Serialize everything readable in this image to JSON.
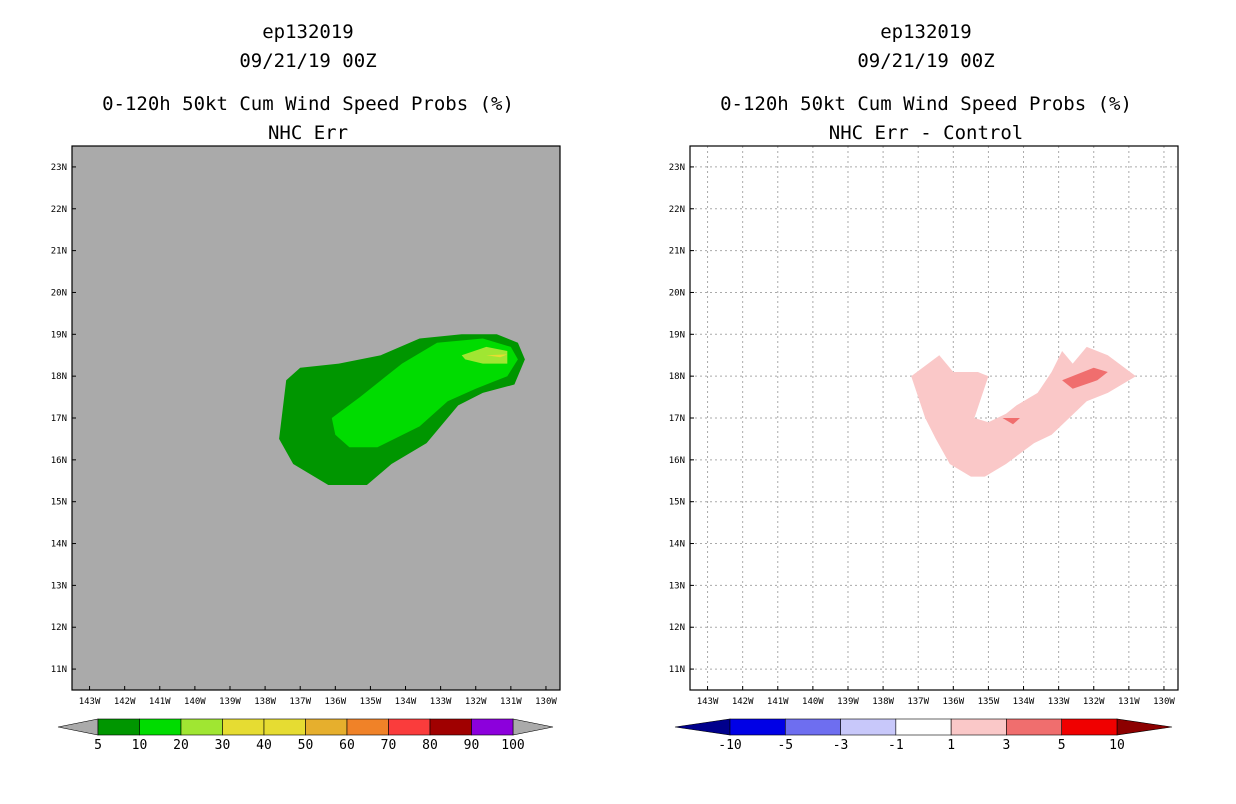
{
  "chart_data": [
    {
      "type": "contour",
      "title": "ep132019",
      "subtitle_date": "09/21/19 00Z",
      "product": "0-120h 50kt Cum Wind Speed Probs (%)",
      "field": "NHC Err",
      "xlabels": [
        "143W",
        "142W",
        "141W",
        "140W",
        "139W",
        "138W",
        "137W",
        "136W",
        "135W",
        "134W",
        "133W",
        "132W",
        "131W",
        "130W"
      ],
      "ylabels": [
        "23N",
        "22N",
        "21N",
        "20N",
        "19N",
        "18N",
        "17N",
        "16N",
        "15N",
        "14N",
        "13N",
        "12N",
        "11N"
      ],
      "xlim": [
        -143.5,
        -129.6
      ],
      "ylim": [
        10.5,
        23.5
      ],
      "grid": false,
      "background": "#aaaaaa",
      "colorbar": {
        "labels": [
          "5",
          "10",
          "20",
          "30",
          "40",
          "50",
          "60",
          "70",
          "80",
          "90",
          "100"
        ],
        "colors": [
          "#009600",
          "#00dc00",
          "#a0e632",
          "#e6dc32",
          "#e6dc32",
          "#e6af2d",
          "#f08228",
          "#fa3c3c",
          "#a00000",
          "#8c00dc"
        ],
        "end_colors": [
          "#aaaaaa",
          "#aaaaaa"
        ]
      },
      "contours": [
        {
          "level": 5,
          "color": "#009600",
          "points": [
            [
              -137.4,
              17.9
            ],
            [
              -137.0,
              18.2
            ],
            [
              -135.9,
              18.3
            ],
            [
              -134.7,
              18.5
            ],
            [
              -133.6,
              18.9
            ],
            [
              -132.4,
              19.0
            ],
            [
              -131.4,
              19.0
            ],
            [
              -130.8,
              18.8
            ],
            [
              -130.6,
              18.4
            ],
            [
              -130.9,
              17.8
            ],
            [
              -131.8,
              17.6
            ],
            [
              -132.5,
              17.3
            ],
            [
              -133.4,
              16.4
            ],
            [
              -134.4,
              15.9
            ],
            [
              -135.1,
              15.4
            ],
            [
              -136.2,
              15.4
            ],
            [
              -137.2,
              15.9
            ],
            [
              -137.6,
              16.5
            ]
          ]
        },
        {
          "level": 10,
          "color": "#00dc00",
          "points": [
            [
              -136.1,
              17.0
            ],
            [
              -135.3,
              17.5
            ],
            [
              -134.1,
              18.3
            ],
            [
              -133.1,
              18.8
            ],
            [
              -131.8,
              18.9
            ],
            [
              -131.0,
              18.7
            ],
            [
              -130.8,
              18.4
            ],
            [
              -131.1,
              18.0
            ],
            [
              -132.0,
              17.7
            ],
            [
              -132.8,
              17.4
            ],
            [
              -133.6,
              16.8
            ],
            [
              -134.8,
              16.3
            ],
            [
              -135.6,
              16.3
            ],
            [
              -136.0,
              16.6
            ]
          ]
        },
        {
          "level": 20,
          "color": "#a0e632",
          "points": [
            [
              -132.4,
              18.5
            ],
            [
              -131.7,
              18.7
            ],
            [
              -131.1,
              18.6
            ],
            [
              -131.1,
              18.3
            ],
            [
              -131.8,
              18.3
            ],
            [
              -132.3,
              18.4
            ]
          ]
        },
        {
          "level": 30,
          "color": "#e6dc32",
          "points": [
            [
              -131.7,
              18.5
            ],
            [
              -131.1,
              18.52
            ],
            [
              -131.3,
              18.45
            ]
          ]
        }
      ]
    },
    {
      "type": "contour",
      "title": "ep132019",
      "subtitle_date": "09/21/19 00Z",
      "product": "0-120h 50kt Cum Wind Speed Probs (%)",
      "field": "NHC Err - Control",
      "xlabels": [
        "143W",
        "142W",
        "141W",
        "140W",
        "139W",
        "138W",
        "137W",
        "136W",
        "135W",
        "134W",
        "133W",
        "132W",
        "131W",
        "130W"
      ],
      "ylabels": [
        "23N",
        "22N",
        "21N",
        "20N",
        "19N",
        "18N",
        "17N",
        "16N",
        "15N",
        "14N",
        "13N",
        "12N",
        "11N"
      ],
      "xlim": [
        -143.5,
        -129.6
      ],
      "ylim": [
        10.5,
        23.5
      ],
      "grid": true,
      "background": "#ffffff",
      "colorbar": {
        "labels": [
          "-10",
          "-5",
          "-3",
          "-1",
          "1",
          "3",
          "5",
          "10"
        ],
        "colors": [
          "#0000e6",
          "#6e6ef0",
          "#c8c8fa",
          "#ffffff",
          "#fac8c8",
          "#f06e6e",
          "#f00000"
        ],
        "end_colors": [
          "#00008c",
          "#8c0000"
        ]
      },
      "contours": [
        {
          "level": 1,
          "color": "#fac8c8",
          "points": [
            [
              -137.2,
              18.0
            ],
            [
              -136.4,
              18.5
            ],
            [
              -136.0,
              18.1
            ],
            [
              -135.3,
              18.1
            ],
            [
              -135.0,
              18.0
            ],
            [
              -135.4,
              17.0
            ],
            [
              -135.0,
              16.9
            ],
            [
              -134.5,
              17.1
            ],
            [
              -134.2,
              17.3
            ],
            [
              -133.6,
              17.6
            ],
            [
              -133.2,
              18.1
            ],
            [
              -132.9,
              18.6
            ],
            [
              -132.6,
              18.3
            ],
            [
              -132.2,
              18.7
            ],
            [
              -131.6,
              18.5
            ],
            [
              -130.8,
              18.0
            ],
            [
              -131.6,
              17.6
            ],
            [
              -132.2,
              17.4
            ],
            [
              -132.7,
              17.0
            ],
            [
              -133.2,
              16.6
            ],
            [
              -133.7,
              16.4
            ],
            [
              -134.5,
              15.9
            ],
            [
              -135.1,
              15.6
            ],
            [
              -135.5,
              15.6
            ],
            [
              -136.1,
              15.9
            ],
            [
              -136.5,
              16.5
            ],
            [
              -136.8,
              17.0
            ]
          ]
        },
        {
          "level": 3,
          "color": "#f06e6e",
          "points": [
            [
              -132.9,
              17.9
            ],
            [
              -132.0,
              18.2
            ],
            [
              -131.6,
              18.1
            ],
            [
              -131.9,
              17.9
            ],
            [
              -132.6,
              17.7
            ]
          ]
        },
        {
          "level": 3,
          "color": "#f06e6e",
          "points": [
            [
              -134.6,
              17.0
            ],
            [
              -134.1,
              17.0
            ],
            [
              -134.3,
              16.85
            ]
          ]
        }
      ]
    }
  ]
}
